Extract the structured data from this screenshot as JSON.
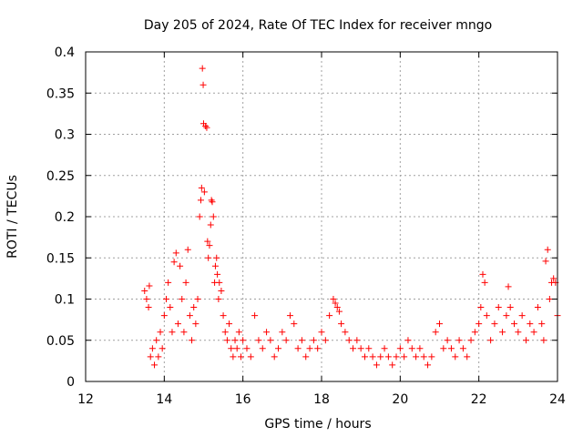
{
  "chart_data": {
    "type": "scatter",
    "title": "Day 205 of 2024, Rate Of TEC Index for receiver mngo",
    "xlabel": "GPS time / hours",
    "ylabel": "ROTI / TECUs",
    "xlim": [
      12,
      24
    ],
    "ylim": [
      0,
      0.4
    ],
    "xticks": [
      12,
      14,
      16,
      18,
      20,
      22,
      24
    ],
    "yticks": [
      0,
      0.05,
      0.1,
      0.15,
      0.2,
      0.25,
      0.3,
      0.35,
      0.4
    ],
    "xtick_labels": [
      "12",
      "14",
      "16",
      "18",
      "20",
      "22",
      "24"
    ],
    "ytick_labels": [
      "0",
      "0.05",
      "0.1",
      "0.15",
      "0.2",
      "0.25",
      "0.3",
      "0.35",
      "0.4"
    ],
    "grid": true,
    "marker": "+",
    "marker_color": "#ff0000",
    "series": [
      {
        "name": "ROTI",
        "color": "#ff0000",
        "x": [
          13.5,
          13.55,
          13.6,
          13.62,
          13.65,
          13.7,
          13.75,
          13.8,
          13.85,
          13.9,
          13.95,
          14.0,
          14.05,
          14.1,
          14.15,
          14.2,
          14.25,
          14.3,
          14.35,
          14.4,
          14.45,
          14.5,
          14.55,
          14.6,
          14.65,
          14.7,
          14.75,
          14.8,
          14.85,
          14.9,
          14.93,
          14.95,
          14.97,
          14.99,
          15.0,
          15.02,
          15.05,
          15.08,
          15.1,
          15.12,
          15.15,
          15.18,
          15.2,
          15.22,
          15.25,
          15.28,
          15.3,
          15.33,
          15.35,
          15.38,
          15.4,
          15.45,
          15.5,
          15.55,
          15.6,
          15.65,
          15.7,
          15.75,
          15.8,
          15.85,
          15.9,
          15.95,
          16.0,
          16.1,
          16.2,
          16.3,
          16.4,
          16.5,
          16.6,
          16.7,
          16.8,
          16.9,
          17.0,
          17.1,
          17.2,
          17.3,
          17.4,
          17.5,
          17.6,
          17.7,
          17.8,
          17.9,
          18.0,
          18.1,
          18.2,
          18.3,
          18.35,
          18.4,
          18.45,
          18.5,
          18.6,
          18.7,
          18.8,
          18.9,
          19.0,
          19.1,
          19.2,
          19.3,
          19.4,
          19.5,
          19.6,
          19.7,
          19.8,
          19.9,
          20.0,
          20.1,
          20.2,
          20.3,
          20.4,
          20.5,
          20.6,
          20.7,
          20.8,
          20.9,
          21.0,
          21.1,
          21.2,
          21.3,
          21.4,
          21.5,
          21.6,
          21.7,
          21.8,
          21.9,
          22.0,
          22.05,
          22.1,
          22.15,
          22.2,
          22.3,
          22.4,
          22.5,
          22.6,
          22.7,
          22.75,
          22.8,
          22.9,
          23.0,
          23.1,
          23.2,
          23.3,
          23.4,
          23.5,
          23.6,
          23.65,
          23.7,
          23.75,
          23.8,
          23.85,
          23.9,
          23.95,
          24.0
        ],
        "y": [
          0.11,
          0.1,
          0.09,
          0.116,
          0.03,
          0.04,
          0.02,
          0.05,
          0.03,
          0.06,
          0.04,
          0.08,
          0.1,
          0.12,
          0.09,
          0.06,
          0.145,
          0.156,
          0.07,
          0.14,
          0.1,
          0.06,
          0.12,
          0.16,
          0.08,
          0.05,
          0.09,
          0.07,
          0.1,
          0.2,
          0.22,
          0.235,
          0.38,
          0.36,
          0.313,
          0.23,
          0.31,
          0.308,
          0.17,
          0.15,
          0.165,
          0.19,
          0.22,
          0.218,
          0.2,
          0.12,
          0.14,
          0.15,
          0.13,
          0.1,
          0.12,
          0.11,
          0.08,
          0.06,
          0.05,
          0.07,
          0.04,
          0.03,
          0.05,
          0.04,
          0.06,
          0.03,
          0.05,
          0.04,
          0.03,
          0.08,
          0.05,
          0.04,
          0.06,
          0.05,
          0.03,
          0.04,
          0.06,
          0.05,
          0.08,
          0.07,
          0.04,
          0.05,
          0.03,
          0.04,
          0.05,
          0.04,
          0.06,
          0.05,
          0.08,
          0.1,
          0.095,
          0.09,
          0.085,
          0.07,
          0.06,
          0.05,
          0.04,
          0.05,
          0.04,
          0.03,
          0.04,
          0.03,
          0.02,
          0.03,
          0.04,
          0.03,
          0.02,
          0.03,
          0.04,
          0.03,
          0.05,
          0.04,
          0.03,
          0.04,
          0.03,
          0.02,
          0.03,
          0.06,
          0.07,
          0.04,
          0.05,
          0.04,
          0.03,
          0.05,
          0.04,
          0.03,
          0.05,
          0.06,
          0.07,
          0.09,
          0.13,
          0.12,
          0.08,
          0.05,
          0.07,
          0.09,
          0.06,
          0.08,
          0.115,
          0.09,
          0.07,
          0.06,
          0.08,
          0.05,
          0.07,
          0.06,
          0.09,
          0.07,
          0.05,
          0.146,
          0.16,
          0.1,
          0.12,
          0.125,
          0.12,
          0.08
        ]
      }
    ]
  }
}
